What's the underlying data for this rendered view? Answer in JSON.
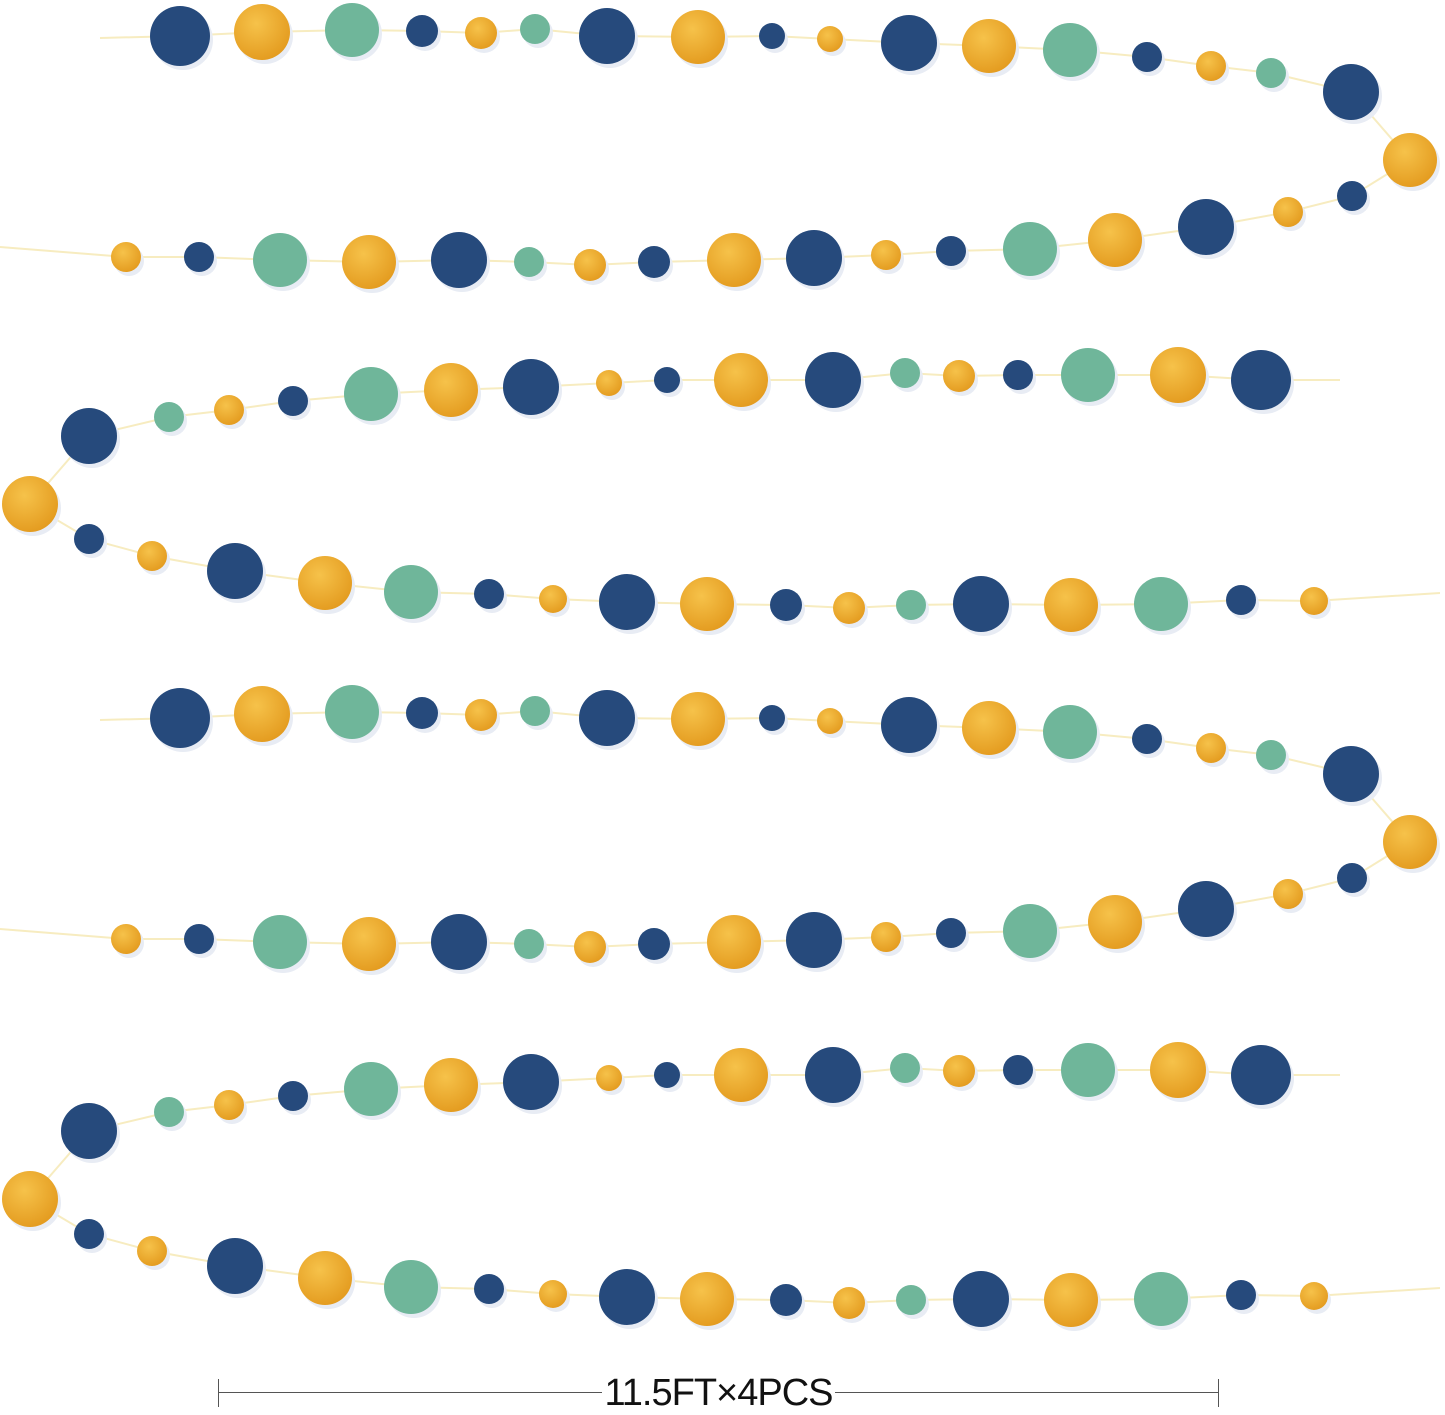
{
  "product": {
    "dimension_label": "11.5FT×4PCS"
  },
  "colors": {
    "navy": "#264a7c",
    "gold": "#eeaa2c",
    "green": "#6fb69a",
    "string": "#f7ecc0"
  }
}
